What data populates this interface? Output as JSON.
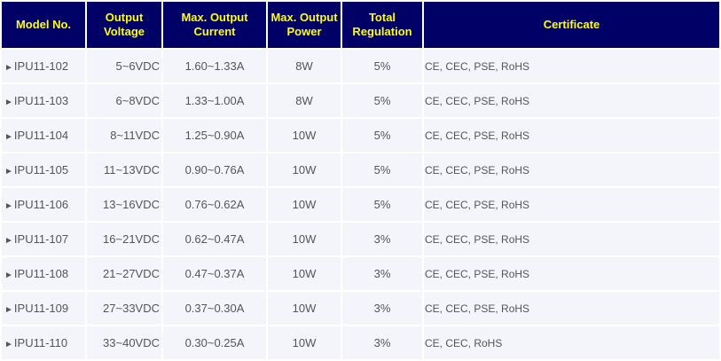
{
  "headers": {
    "model": "Model No.",
    "voltage_l1": "Output",
    "voltage_l2": "Voltage",
    "current_l1": "Max. Output",
    "current_l2": "Current",
    "power_l1": "Max. Output",
    "power_l2": "Power",
    "regulation_l1": "Total",
    "regulation_l2": "Regulation",
    "certificate": "Certificate"
  },
  "arrow_glyph": "►",
  "rows": [
    {
      "model": "IPU11-102",
      "voltage": "5~6VDC",
      "current": "1.60~1.33A",
      "power": "8W",
      "regulation": "5%",
      "certificate": "CE, CEC, PSE, RoHS"
    },
    {
      "model": "IPU11-103",
      "voltage": "6~8VDC",
      "current": "1.33~1.00A",
      "power": "8W",
      "regulation": "5%",
      "certificate": "CE, CEC, PSE, RoHS"
    },
    {
      "model": "IPU11-104",
      "voltage": "8~11VDC",
      "current": "1.25~0.90A",
      "power": "10W",
      "regulation": "5%",
      "certificate": "CE, CEC, PSE, RoHS"
    },
    {
      "model": "IPU11-105",
      "voltage": "11~13VDC",
      "current": "0.90~0.76A",
      "power": "10W",
      "regulation": "5%",
      "certificate": "CE, CEC, PSE, RoHS"
    },
    {
      "model": "IPU11-106",
      "voltage": "13~16VDC",
      "current": "0.76~0.62A",
      "power": "10W",
      "regulation": "5%",
      "certificate": "CE, CEC, PSE, RoHS"
    },
    {
      "model": "IPU11-107",
      "voltage": "16~21VDC",
      "current": "0.62~0.47A",
      "power": "10W",
      "regulation": "3%",
      "certificate": "CE, CEC, PSE, RoHS"
    },
    {
      "model": "IPU11-108",
      "voltage": "21~27VDC",
      "current": "0.47~0.37A",
      "power": "10W",
      "regulation": "3%",
      "certificate": "CE, CEC, PSE, RoHS"
    },
    {
      "model": "IPU11-109",
      "voltage": "27~33VDC",
      "current": "0.37~0.30A",
      "power": "10W",
      "regulation": "3%",
      "certificate": "CE, CEC, PSE, RoHS"
    },
    {
      "model": "IPU11-110",
      "voltage": "33~40VDC",
      "current": "0.30~0.25A",
      "power": "10W",
      "regulation": "3%",
      "certificate": "CE, CEC, RoHS"
    }
  ]
}
